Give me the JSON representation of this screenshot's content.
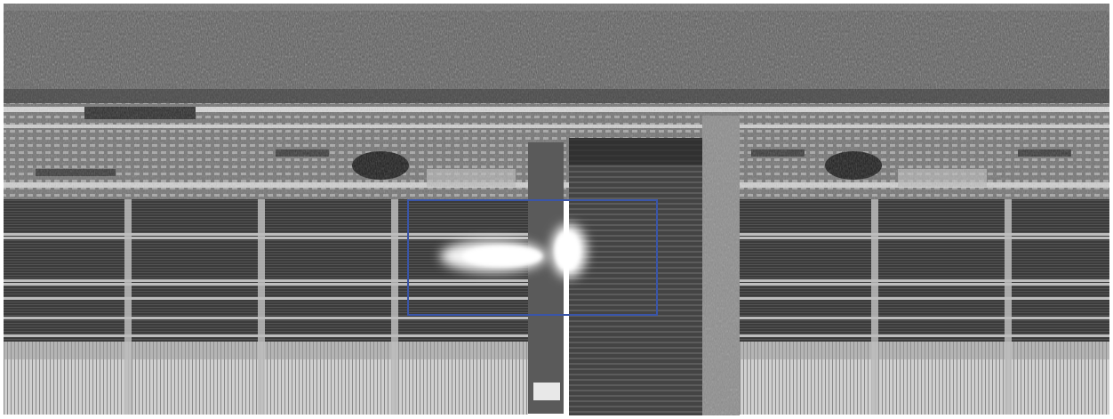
{
  "image": {
    "kind": "grayscale infrared/thermal scan of a microchip die",
    "colors": {
      "background": "#ffffff",
      "noise_band": "#5a5a5a",
      "cell_array": "#3a3a3a",
      "grid_line": "#bdbdbd",
      "bright_rows": "#d8d8d8",
      "hotspot": "#ffffff",
      "detection_box": "#3a55a8"
    },
    "hotspot": {
      "label": "",
      "shape": "bright flame-like blob"
    },
    "detection_box": {
      "label": ""
    }
  }
}
